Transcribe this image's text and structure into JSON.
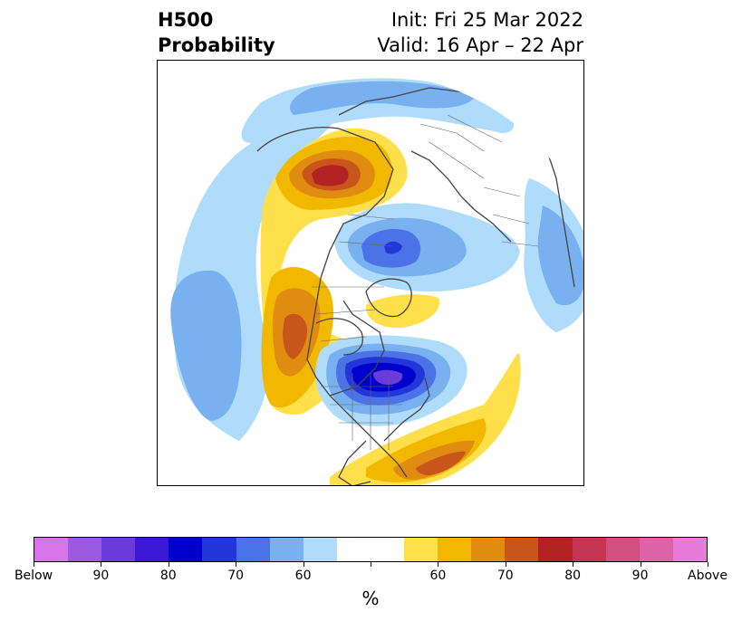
{
  "header": {
    "title_line1": "H500",
    "title_line2": "Probability",
    "init": "Init: Fri 25 Mar 2022",
    "valid": "Valid: 16 Apr – 22 Apr"
  },
  "colorbar": {
    "colors": [
      "#d675e8",
      "#9b59e0",
      "#6c3adb",
      "#3a18d6",
      "#0000cc",
      "#2336d9",
      "#4b72e6",
      "#78b0f0",
      "#aedcfa",
      "#ffffff",
      "#ffffff",
      "#ffdf4a",
      "#f2b800",
      "#e08c10",
      "#c8551a",
      "#b22222",
      "#c33552",
      "#d2507e",
      "#dd62a8",
      "#e87ada"
    ],
    "ticks": [
      "Below",
      "90",
      "80",
      "70",
      "60",
      "60",
      "70",
      "80",
      "90",
      "Above"
    ],
    "label": "%"
  },
  "map_colors": {
    "blue_light": "#aedcfa",
    "blue_mid": "#78b0f0",
    "blue_med": "#4b72e6",
    "blue_dark": "#2336d9",
    "blue_deep": "#0000cc",
    "purple": "#6c3adb",
    "yellow": "#ffdf4a",
    "gold": "#f2b800",
    "orange": "#e08c10",
    "rust": "#c8551a",
    "red": "#b22222"
  }
}
